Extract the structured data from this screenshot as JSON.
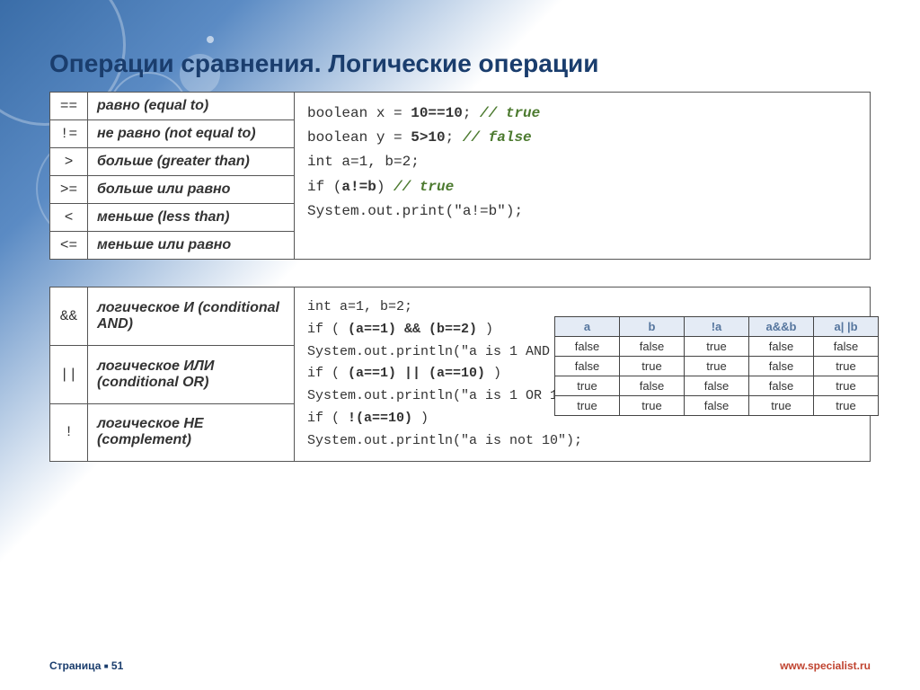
{
  "title": "Операции сравнения. Логические операции",
  "comparison_ops": [
    {
      "sym": "==",
      "desc": "равно (equal to)"
    },
    {
      "sym": "!=",
      "desc": "не равно (not equal to)"
    },
    {
      "sym": ">",
      "desc": "больше (greater than)"
    },
    {
      "sym": ">=",
      "desc": "больше или равно"
    },
    {
      "sym": "<",
      "desc": "меньше (less than)"
    },
    {
      "sym": "<=",
      "desc": "меньше или равно"
    }
  ],
  "code1": {
    "l1a": "boolean x = ",
    "l1b": "10==10",
    "l1c": "; ",
    "l1d": "// true",
    "l2a": "boolean y = ",
    "l2b": "5>10",
    "l2c": ";   ",
    "l2d": "// false",
    "l3": "int a=1, b=2;",
    "l4a": "if (",
    "l4b": "a!=b",
    "l4c": ")           ",
    "l4d": "// true",
    "l5": "    System.out.print(\"a!=b\");"
  },
  "logical_ops": [
    {
      "sym": "&&",
      "desc": "логическое И (conditional AND)"
    },
    {
      "sym": "||",
      "desc": "логическое ИЛИ (conditional OR)"
    },
    {
      "sym": "!",
      "desc": "логическое НЕ (complement)"
    }
  ],
  "code2": {
    "l1": "int a=1, b=2;",
    "l2a": "if ( ",
    "l2b": "(a==1) && (b==2)",
    "l2c": " )",
    "l3": "    System.out.println(\"a is 1 AND b is 2\");",
    "l4a": "if ( ",
    "l4b": "(a==1) || (a==10)",
    "l4c": " )",
    "l5": "    System.out.println(\"a is 1 OR 10\");",
    "l6a": "if ( ",
    "l6b": "!(a==10)",
    "l6c": " )",
    "l7": "    System.out.println(\"a is not 10\");"
  },
  "truth_table": {
    "headers": [
      "a",
      "b",
      "!a",
      "a&&b",
      "a| |b"
    ],
    "rows": [
      [
        "false",
        "false",
        "true",
        "false",
        "false"
      ],
      [
        "false",
        "true",
        "true",
        "false",
        "true"
      ],
      [
        "true",
        "false",
        "false",
        "false",
        "true"
      ],
      [
        "true",
        "true",
        "false",
        "true",
        "true"
      ]
    ]
  },
  "footer": {
    "page_label": "Страница",
    "page_num": "51",
    "url": "www.specialist.ru"
  },
  "colors": {
    "header": "#1a3d6d",
    "comment": "#4c7a2f",
    "url": "#c04430",
    "tt_header_bg": "#e4ebf5",
    "tt_header_fg": "#56769e",
    "border": "#555555",
    "bg": "#ffffff"
  }
}
